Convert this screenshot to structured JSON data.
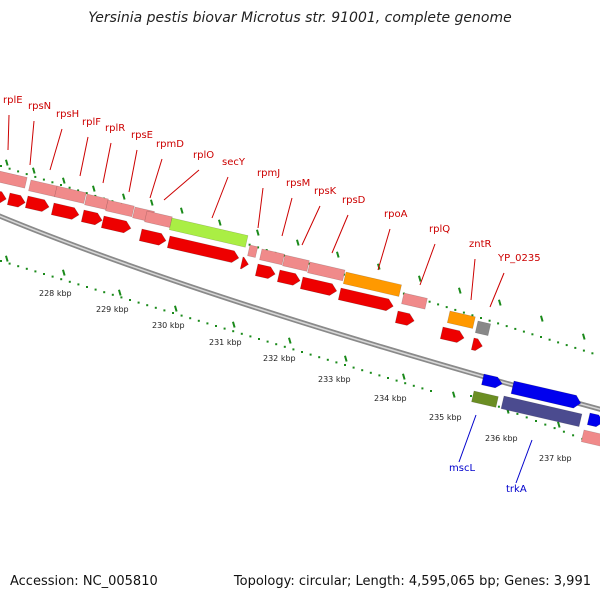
{
  "title": "Yersinia pestis biovar Microtus str. 91001, complete genome",
  "footer": {
    "accession": "Accession: NC_005810",
    "topology": "Topology: circular; Length: 4,595,065 bp; Genes: 3,991"
  },
  "colors": {
    "backbone": "#8a8a8a",
    "ribosomal_protein": "#f08a8a",
    "cds_forward": "#ee0000",
    "translocase": "#aaee44",
    "rna_polymerase": "#ff9900",
    "regulator": "#888888",
    "forward_label": "#cc0000",
    "reverse_label": "#0000cc",
    "reverse_cds": "#0000ee",
    "transporter": "#6b8e23",
    "channel": "#4b4b8f",
    "tick": "#1a8a1a"
  },
  "scale_labels": [
    "228 kbp",
    "229 kbp",
    "230 kbp",
    "231 kbp",
    "232 kbp",
    "233 kbp",
    "234 kbp",
    "235 kbp",
    "236 kbp",
    "237 kbp"
  ],
  "forward_genes": [
    "rplE",
    "rpsN",
    "rpsH",
    "rplF",
    "rplR",
    "rpsE",
    "rpmD",
    "rplO",
    "secY",
    "rpmJ",
    "rpsM",
    "rpsK",
    "rpsD",
    "rpoA",
    "rplQ",
    "zntR",
    "YP_0235"
  ],
  "reverse_genes": [
    "mscL",
    "trkA"
  ]
}
